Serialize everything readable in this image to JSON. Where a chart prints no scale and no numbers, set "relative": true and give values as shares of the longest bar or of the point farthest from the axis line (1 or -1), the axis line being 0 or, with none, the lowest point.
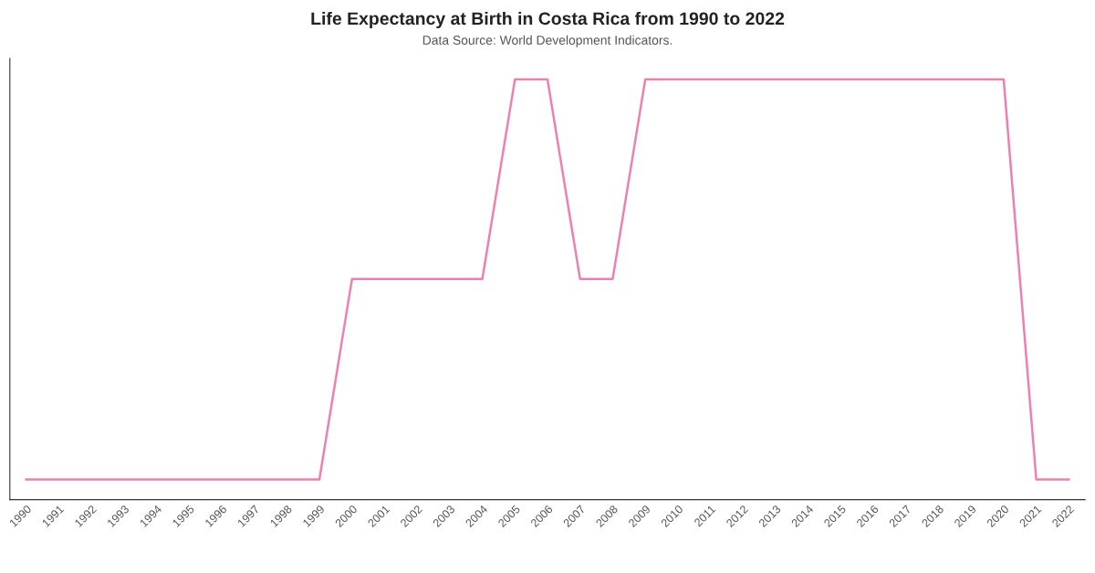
{
  "chart_data": {
    "type": "line",
    "title": "Life Expectancy at Birth in Costa Rica from 1990 to 2022",
    "subtitle": "Data Source: World Development Indicators.",
    "relative": true,
    "categories": [
      "1990",
      "1991",
      "1992",
      "1993",
      "1994",
      "1995",
      "1996",
      "1997",
      "1998",
      "1999",
      "2000",
      "2001",
      "2002",
      "2003",
      "2004",
      "2005",
      "2006",
      "2007",
      "2008",
      "2009",
      "2010",
      "2011",
      "2012",
      "2013",
      "2014",
      "2015",
      "2016",
      "2017",
      "2018",
      "2019",
      "2020",
      "2021",
      "2022"
    ],
    "series": [
      {
        "color": "#f07fb1",
        "values": [
          0.048,
          0.048,
          0.048,
          0.048,
          0.048,
          0.048,
          0.048,
          0.048,
          0.048,
          0.048,
          0.525,
          0.525,
          0.525,
          0.525,
          0.525,
          1,
          1,
          0.525,
          0.525,
          1,
          1,
          1,
          1,
          1,
          1,
          1,
          1,
          1,
          1,
          1,
          1,
          0.048,
          0.048
        ]
      }
    ],
    "grid": false,
    "legend": false,
    "marker": "none",
    "line_style": "solid"
  }
}
